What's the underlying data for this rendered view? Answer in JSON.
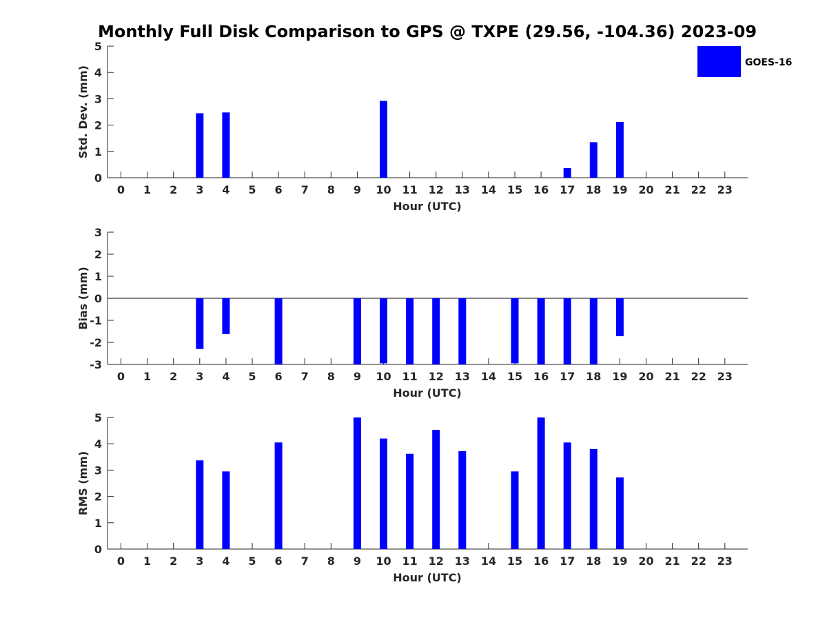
{
  "title": "Monthly Full Disk Comparison to GPS @ TXPE (29.56, -104.36) 2023-09",
  "legend": {
    "label": "GOES-16",
    "color": "#0000ff",
    "placement": "top-right"
  },
  "chart_data": [
    {
      "type": "bar",
      "xlabel": "Hour (UTC)",
      "ylabel": "Std. Dev. (mm)",
      "ylim": [
        0,
        5
      ],
      "yticks": [
        "0",
        "1",
        "2",
        "3",
        "4",
        "5"
      ],
      "categories": [
        "0",
        "1",
        "2",
        "3",
        "4",
        "5",
        "6",
        "7",
        "8",
        "9",
        "10",
        "11",
        "12",
        "13",
        "14",
        "15",
        "16",
        "17",
        "18",
        "19",
        "20",
        "21",
        "22",
        "23"
      ],
      "series": [
        {
          "name": "GOES-16",
          "color": "#0000ff",
          "values": [
            null,
            null,
            null,
            2.45,
            2.48,
            null,
            0,
            null,
            null,
            0,
            2.92,
            0,
            0,
            0,
            null,
            0,
            0,
            0.37,
            1.35,
            2.12,
            null,
            null,
            null,
            null
          ]
        }
      ]
    },
    {
      "type": "bar",
      "xlabel": "Hour (UTC)",
      "ylabel": "Bias (mm)",
      "ylim": [
        -3,
        3
      ],
      "yticks": [
        "-3",
        "-2",
        "-1",
        "0",
        "1",
        "2",
        "3"
      ],
      "zero_line": true,
      "categories": [
        "0",
        "1",
        "2",
        "3",
        "4",
        "5",
        "6",
        "7",
        "8",
        "9",
        "10",
        "11",
        "12",
        "13",
        "14",
        "15",
        "16",
        "17",
        "18",
        "19",
        "20",
        "21",
        "22",
        "23"
      ],
      "series": [
        {
          "name": "GOES-16",
          "color": "#0000ff",
          "values": [
            null,
            null,
            null,
            -2.3,
            -1.62,
            null,
            -3.0,
            null,
            null,
            -3.0,
            -2.95,
            -3.0,
            -3.0,
            -3.0,
            null,
            -2.95,
            -3.0,
            -3.0,
            -3.0,
            -1.72,
            null,
            null,
            null,
            null
          ]
        }
      ]
    },
    {
      "type": "bar",
      "xlabel": "Hour (UTC)",
      "ylabel": "RMS (mm)",
      "ylim": [
        0,
        5
      ],
      "yticks": [
        "0",
        "1",
        "2",
        "3",
        "4",
        "5"
      ],
      "categories": [
        "0",
        "1",
        "2",
        "3",
        "4",
        "5",
        "6",
        "7",
        "8",
        "9",
        "10",
        "11",
        "12",
        "13",
        "14",
        "15",
        "16",
        "17",
        "18",
        "19",
        "20",
        "21",
        "22",
        "23"
      ],
      "series": [
        {
          "name": "GOES-16",
          "color": "#0000ff",
          "values": [
            null,
            null,
            null,
            3.37,
            2.95,
            null,
            4.05,
            null,
            null,
            5.0,
            4.2,
            3.62,
            4.53,
            3.72,
            null,
            2.95,
            5.0,
            4.05,
            3.8,
            2.72,
            null,
            null,
            null,
            null
          ]
        }
      ]
    }
  ]
}
